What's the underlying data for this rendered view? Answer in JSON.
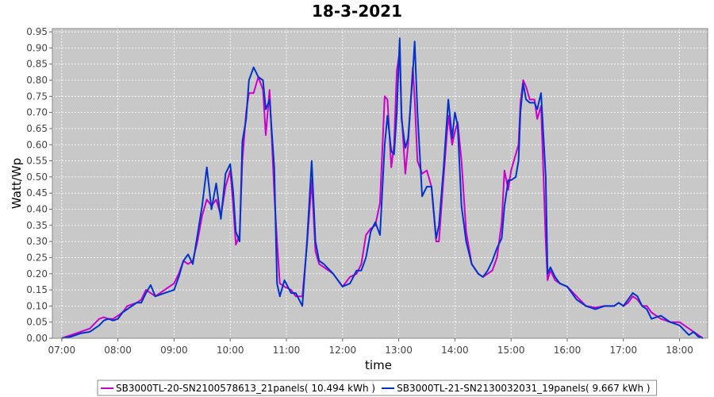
{
  "chart_data": {
    "type": "line",
    "title": "18-3-2021",
    "xlabel": "time",
    "ylabel": "Watt/Wp",
    "xlim": [
      "06:50",
      "18:30"
    ],
    "ylim": [
      0,
      0.96
    ],
    "x_ticks": [
      "07:00",
      "08:00",
      "09:00",
      "10:00",
      "11:00",
      "12:00",
      "13:00",
      "14:00",
      "15:00",
      "16:00",
      "17:00",
      "18:00"
    ],
    "y_ticks": [
      "0.00",
      "0.05",
      "0.10",
      "0.15",
      "0.20",
      "0.25",
      "0.30",
      "0.35",
      "0.40",
      "0.45",
      "0.50",
      "0.55",
      "0.60",
      "0.65",
      "0.70",
      "0.75",
      "0.80",
      "0.85",
      "0.90",
      "0.95"
    ],
    "grid": true,
    "background": "#c8c8c8",
    "legend_position": "bottom",
    "series": [
      {
        "name": "SB3000TL-20-SN2100578613_21panels( 10.494 kWh )",
        "color": "#cc00cc",
        "points": [
          [
            "07:00",
            0.0
          ],
          [
            "07:10",
            0.01
          ],
          [
            "07:20",
            0.02
          ],
          [
            "07:30",
            0.03
          ],
          [
            "07:40",
            0.06
          ],
          [
            "07:45",
            0.065
          ],
          [
            "07:50",
            0.06
          ],
          [
            "07:55",
            0.06
          ],
          [
            "08:00",
            0.07
          ],
          [
            "08:05",
            0.08
          ],
          [
            "08:10",
            0.1
          ],
          [
            "08:20",
            0.11
          ],
          [
            "08:25",
            0.12
          ],
          [
            "08:30",
            0.15
          ],
          [
            "08:35",
            0.14
          ],
          [
            "08:40",
            0.13
          ],
          [
            "08:50",
            0.15
          ],
          [
            "09:00",
            0.17
          ],
          [
            "09:05",
            0.2
          ],
          [
            "09:10",
            0.24
          ],
          [
            "09:15",
            0.23
          ],
          [
            "09:20",
            0.24
          ],
          [
            "09:25",
            0.3
          ],
          [
            "09:30",
            0.38
          ],
          [
            "09:35",
            0.43
          ],
          [
            "09:40",
            0.41
          ],
          [
            "09:45",
            0.43
          ],
          [
            "09:50",
            0.38
          ],
          [
            "09:55",
            0.47
          ],
          [
            "10:00",
            0.52
          ],
          [
            "10:03",
            0.42
          ],
          [
            "10:06",
            0.29
          ],
          [
            "10:10",
            0.32
          ],
          [
            "10:13",
            0.55
          ],
          [
            "10:17",
            0.7
          ],
          [
            "10:20",
            0.76
          ],
          [
            "10:25",
            0.76
          ],
          [
            "10:30",
            0.81
          ],
          [
            "10:35",
            0.77
          ],
          [
            "10:38",
            0.63
          ],
          [
            "10:42",
            0.77
          ],
          [
            "10:47",
            0.45
          ],
          [
            "10:50",
            0.3
          ],
          [
            "10:53",
            0.17
          ],
          [
            "10:58",
            0.16
          ],
          [
            "11:05",
            0.15
          ],
          [
            "11:10",
            0.13
          ],
          [
            "11:17",
            0.13
          ],
          [
            "11:22",
            0.29
          ],
          [
            "11:27",
            0.49
          ],
          [
            "11:31",
            0.27
          ],
          [
            "11:35",
            0.23
          ],
          [
            "11:40",
            0.22
          ],
          [
            "11:50",
            0.2
          ],
          [
            "12:00",
            0.16
          ],
          [
            "12:08",
            0.19
          ],
          [
            "12:15",
            0.2
          ],
          [
            "12:20",
            0.23
          ],
          [
            "12:25",
            0.32
          ],
          [
            "12:30",
            0.34
          ],
          [
            "12:35",
            0.35
          ],
          [
            "12:40",
            0.42
          ],
          [
            "12:45",
            0.75
          ],
          [
            "12:48",
            0.74
          ],
          [
            "12:52",
            0.53
          ],
          [
            "12:55",
            0.6
          ],
          [
            "12:58",
            0.83
          ],
          [
            "13:01",
            0.89
          ],
          [
            "13:03",
            0.7
          ],
          [
            "13:07",
            0.51
          ],
          [
            "13:10",
            0.6
          ],
          [
            "13:15",
            0.84
          ],
          [
            "13:17",
            0.74
          ],
          [
            "13:20",
            0.55
          ],
          [
            "13:25",
            0.51
          ],
          [
            "13:30",
            0.52
          ],
          [
            "13:35",
            0.47
          ],
          [
            "13:40",
            0.3
          ],
          [
            "13:43",
            0.3
          ],
          [
            "13:48",
            0.5
          ],
          [
            "13:53",
            0.69
          ],
          [
            "13:57",
            0.6
          ],
          [
            "14:00",
            0.64
          ],
          [
            "14:03",
            0.67
          ],
          [
            "14:07",
            0.55
          ],
          [
            "14:12",
            0.33
          ],
          [
            "14:18",
            0.23
          ],
          [
            "14:25",
            0.2
          ],
          [
            "14:30",
            0.19
          ],
          [
            "14:35",
            0.2
          ],
          [
            "14:40",
            0.21
          ],
          [
            "14:45",
            0.25
          ],
          [
            "14:50",
            0.36
          ],
          [
            "14:53",
            0.52
          ],
          [
            "14:57",
            0.46
          ],
          [
            "15:00",
            0.52
          ],
          [
            "15:05",
            0.57
          ],
          [
            "15:08",
            0.6
          ],
          [
            "15:10",
            0.73
          ],
          [
            "15:13",
            0.8
          ],
          [
            "15:16",
            0.78
          ],
          [
            "15:20",
            0.74
          ],
          [
            "15:25",
            0.74
          ],
          [
            "15:28",
            0.68
          ],
          [
            "15:32",
            0.72
          ],
          [
            "15:37",
            0.3
          ],
          [
            "15:39",
            0.18
          ],
          [
            "15:42",
            0.21
          ],
          [
            "15:47",
            0.18
          ],
          [
            "15:52",
            0.17
          ],
          [
            "16:00",
            0.16
          ],
          [
            "16:10",
            0.13
          ],
          [
            "16:20",
            0.1
          ],
          [
            "16:30",
            0.095
          ],
          [
            "16:40",
            0.1
          ],
          [
            "16:50",
            0.1
          ],
          [
            "16:55",
            0.11
          ],
          [
            "17:00",
            0.1
          ],
          [
            "17:05",
            0.11
          ],
          [
            "17:10",
            0.13
          ],
          [
            "17:15",
            0.12
          ],
          [
            "17:20",
            0.1
          ],
          [
            "17:25",
            0.1
          ],
          [
            "17:30",
            0.08
          ],
          [
            "17:40",
            0.06
          ],
          [
            "17:50",
            0.05
          ],
          [
            "18:00",
            0.05
          ],
          [
            "18:10",
            0.03
          ],
          [
            "18:15",
            0.02
          ],
          [
            "18:20",
            0.01
          ],
          [
            "18:25",
            0.0
          ]
        ]
      },
      {
        "name": "SB3000TL-21-SN2130032031_19panels( 9.667 kWh )",
        "color": "#0033cc",
        "points": [
          [
            "07:00",
            0.0
          ],
          [
            "07:10",
            0.005
          ],
          [
            "07:20",
            0.015
          ],
          [
            "07:30",
            0.02
          ],
          [
            "07:40",
            0.04
          ],
          [
            "07:45",
            0.055
          ],
          [
            "07:50",
            0.06
          ],
          [
            "07:55",
            0.055
          ],
          [
            "08:00",
            0.06
          ],
          [
            "08:05",
            0.08
          ],
          [
            "08:10",
            0.09
          ],
          [
            "08:20",
            0.11
          ],
          [
            "08:25",
            0.11
          ],
          [
            "08:30",
            0.14
          ],
          [
            "08:35",
            0.165
          ],
          [
            "08:40",
            0.13
          ],
          [
            "08:50",
            0.14
          ],
          [
            "09:00",
            0.15
          ],
          [
            "09:05",
            0.19
          ],
          [
            "09:10",
            0.24
          ],
          [
            "09:15",
            0.26
          ],
          [
            "09:20",
            0.23
          ],
          [
            "09:25",
            0.32
          ],
          [
            "09:30",
            0.41
          ],
          [
            "09:35",
            0.53
          ],
          [
            "09:40",
            0.4
          ],
          [
            "09:45",
            0.48
          ],
          [
            "09:50",
            0.37
          ],
          [
            "09:55",
            0.51
          ],
          [
            "10:00",
            0.54
          ],
          [
            "10:03",
            0.46
          ],
          [
            "10:06",
            0.33
          ],
          [
            "10:10",
            0.3
          ],
          [
            "10:13",
            0.61
          ],
          [
            "10:17",
            0.68
          ],
          [
            "10:20",
            0.8
          ],
          [
            "10:25",
            0.84
          ],
          [
            "10:30",
            0.81
          ],
          [
            "10:35",
            0.8
          ],
          [
            "10:38",
            0.71
          ],
          [
            "10:42",
            0.74
          ],
          [
            "10:47",
            0.53
          ],
          [
            "10:50",
            0.17
          ],
          [
            "10:53",
            0.13
          ],
          [
            "10:58",
            0.18
          ],
          [
            "11:05",
            0.14
          ],
          [
            "11:10",
            0.14
          ],
          [
            "11:17",
            0.1
          ],
          [
            "11:22",
            0.3
          ],
          [
            "11:27",
            0.55
          ],
          [
            "11:31",
            0.3
          ],
          [
            "11:35",
            0.24
          ],
          [
            "11:40",
            0.23
          ],
          [
            "11:50",
            0.2
          ],
          [
            "12:00",
            0.16
          ],
          [
            "12:08",
            0.17
          ],
          [
            "12:15",
            0.21
          ],
          [
            "12:20",
            0.21
          ],
          [
            "12:25",
            0.25
          ],
          [
            "12:30",
            0.33
          ],
          [
            "12:35",
            0.36
          ],
          [
            "12:40",
            0.32
          ],
          [
            "12:45",
            0.6
          ],
          [
            "12:48",
            0.69
          ],
          [
            "12:52",
            0.58
          ],
          [
            "12:55",
            0.57
          ],
          [
            "12:58",
            0.7
          ],
          [
            "13:01",
            0.93
          ],
          [
            "13:03",
            0.68
          ],
          [
            "13:07",
            0.59
          ],
          [
            "13:10",
            0.62
          ],
          [
            "13:15",
            0.82
          ],
          [
            "13:17",
            0.92
          ],
          [
            "13:20",
            0.7
          ],
          [
            "13:25",
            0.44
          ],
          [
            "13:30",
            0.47
          ],
          [
            "13:35",
            0.47
          ],
          [
            "13:40",
            0.31
          ],
          [
            "13:43",
            0.35
          ],
          [
            "13:48",
            0.53
          ],
          [
            "13:53",
            0.74
          ],
          [
            "13:57",
            0.62
          ],
          [
            "14:00",
            0.7
          ],
          [
            "14:03",
            0.66
          ],
          [
            "14:07",
            0.41
          ],
          [
            "14:12",
            0.3
          ],
          [
            "14:18",
            0.23
          ],
          [
            "14:25",
            0.2
          ],
          [
            "14:30",
            0.19
          ],
          [
            "14:35",
            0.21
          ],
          [
            "14:40",
            0.24
          ],
          [
            "14:45",
            0.28
          ],
          [
            "14:50",
            0.31
          ],
          [
            "14:53",
            0.41
          ],
          [
            "14:57",
            0.49
          ],
          [
            "15:00",
            0.49
          ],
          [
            "15:05",
            0.5
          ],
          [
            "15:08",
            0.55
          ],
          [
            "15:10",
            0.7
          ],
          [
            "15:13",
            0.79
          ],
          [
            "15:16",
            0.74
          ],
          [
            "15:20",
            0.73
          ],
          [
            "15:25",
            0.73
          ],
          [
            "15:28",
            0.71
          ],
          [
            "15:32",
            0.76
          ],
          [
            "15:37",
            0.5
          ],
          [
            "15:39",
            0.2
          ],
          [
            "15:42",
            0.22
          ],
          [
            "15:47",
            0.19
          ],
          [
            "15:52",
            0.17
          ],
          [
            "16:00",
            0.16
          ],
          [
            "16:10",
            0.12
          ],
          [
            "16:20",
            0.1
          ],
          [
            "16:30",
            0.09
          ],
          [
            "16:40",
            0.1
          ],
          [
            "16:50",
            0.1
          ],
          [
            "16:55",
            0.11
          ],
          [
            "17:00",
            0.1
          ],
          [
            "17:05",
            0.12
          ],
          [
            "17:10",
            0.14
          ],
          [
            "17:15",
            0.13
          ],
          [
            "17:20",
            0.1
          ],
          [
            "17:25",
            0.09
          ],
          [
            "17:30",
            0.06
          ],
          [
            "17:40",
            0.07
          ],
          [
            "17:50",
            0.05
          ],
          [
            "18:00",
            0.04
          ],
          [
            "18:10",
            0.01
          ],
          [
            "18:15",
            0.02
          ],
          [
            "18:20",
            0.005
          ],
          [
            "18:25",
            0.0
          ]
        ]
      }
    ]
  }
}
